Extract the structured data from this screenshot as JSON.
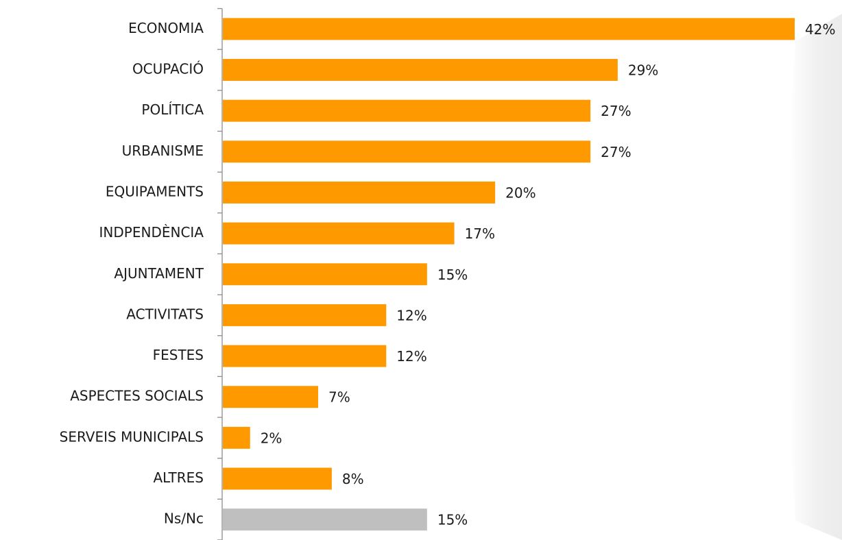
{
  "chart_data": {
    "type": "bar",
    "orientation": "horizontal",
    "categories": [
      "ECONOMIA",
      "OCUPACIÓ",
      "POLÍTICA",
      "URBANISME",
      "EQUIPAMENTS",
      "INDPENDÈNCIA",
      "AJUNTAMENT",
      "ACTIVITATS",
      "FESTES",
      "ASPECTES SOCIALS",
      "SERVEIS MUNICIPALS",
      "ALTRES",
      "Ns/Nc"
    ],
    "values": [
      42,
      29,
      27,
      27,
      20,
      17,
      15,
      12,
      12,
      7,
      2,
      8,
      15
    ],
    "value_labels": [
      "42%",
      "29%",
      "27%",
      "27%",
      "20%",
      "17%",
      "15%",
      "12%",
      "12%",
      "7%",
      "2%",
      "8%",
      "15%"
    ],
    "colors": [
      "#ff9900",
      "#ff9900",
      "#ff9900",
      "#ff9900",
      "#ff9900",
      "#ff9900",
      "#ff9900",
      "#ff9900",
      "#ff9900",
      "#ff9900",
      "#ff9900",
      "#ff9900",
      "#bfbfbf"
    ]
  }
}
